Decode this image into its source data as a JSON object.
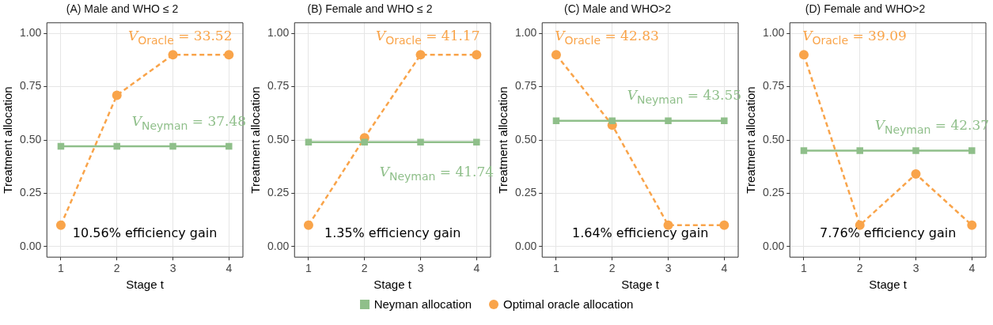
{
  "chart_data": [
    {
      "type": "line",
      "title": "(A) Male and WHO ≤ 2",
      "xlabel": "Stage t",
      "ylabel": "Treatment allocation",
      "x": [
        1,
        2,
        3,
        4
      ],
      "xlim": [
        0.75,
        4.25
      ],
      "xticks": [
        1,
        2,
        3,
        4
      ],
      "ylim": [
        -0.05,
        1.05
      ],
      "yticks": [
        {
          "value": 0,
          "label": "0.00"
        },
        {
          "value": 0.25,
          "label": "0.25"
        },
        {
          "value": 0.5,
          "label": "0.50"
        },
        {
          "value": 0.75,
          "label": "0.75"
        },
        {
          "value": 1,
          "label": "1.00"
        }
      ],
      "grid": true,
      "legend": "bottom",
      "series": [
        {
          "name": "Neyman allocation",
          "color": "#8fbf8a",
          "marker": "square",
          "line_style": "solid",
          "values": [
            0.47,
            0.47,
            0.47,
            0.47
          ]
        },
        {
          "name": "Optimal oracle allocation",
          "color": "#f9a44a",
          "marker": "circle",
          "line_style": "dashed",
          "values": [
            0.1,
            0.71,
            0.9,
            0.9
          ]
        }
      ],
      "annotations": [
        "V$_{Neyman}$ = 37.48",
        "V$_{Oracle}$ = 33.52",
        "10.56% efficiency gain"
      ]
    },
    {
      "type": "line",
      "title": "(B) Female and WHO ≤ 2",
      "xlabel": "Stage t",
      "ylabel": "Treatment allocation",
      "x": [
        1,
        2,
        3,
        4
      ],
      "xlim": [
        0.75,
        4.25
      ],
      "xticks": [
        1,
        2,
        3,
        4
      ],
      "ylim": [
        -0.05,
        1.05
      ],
      "yticks": [
        {
          "value": 0,
          "label": "0.00"
        },
        {
          "value": 0.25,
          "label": "0.25"
        },
        {
          "value": 0.5,
          "label": "0.50"
        },
        {
          "value": 0.75,
          "label": "0.75"
        },
        {
          "value": 1,
          "label": "1.00"
        }
      ],
      "grid": true,
      "legend": "bottom",
      "series": [
        {
          "name": "Neyman allocation",
          "color": "#8fbf8a",
          "marker": "square",
          "line_style": "solid",
          "values": [
            0.49,
            0.49,
            0.49,
            0.49
          ]
        },
        {
          "name": "Optimal oracle allocation",
          "color": "#f9a44a",
          "marker": "circle",
          "line_style": "dashed",
          "values": [
            0.1,
            0.51,
            0.9,
            0.9
          ]
        }
      ],
      "annotations": [
        "V$_{Neyman}$ = 41.74",
        "V$_{Oracle}$ = 41.17",
        "1.35% efficiency gain"
      ]
    },
    {
      "type": "line",
      "title": "(C) Male and WHO>2",
      "xlabel": "Stage t",
      "ylabel": "Treatment allocation",
      "x": [
        1,
        2,
        3,
        4
      ],
      "xlim": [
        0.75,
        4.25
      ],
      "xticks": [
        1,
        2,
        3,
        4
      ],
      "ylim": [
        -0.05,
        1.05
      ],
      "yticks": [
        {
          "value": 0,
          "label": "0.00"
        },
        {
          "value": 0.25,
          "label": "0.25"
        },
        {
          "value": 0.5,
          "label": "0.50"
        },
        {
          "value": 0.75,
          "label": "0.75"
        },
        {
          "value": 1,
          "label": "1.00"
        }
      ],
      "grid": true,
      "legend": "bottom",
      "series": [
        {
          "name": "Neyman allocation",
          "color": "#8fbf8a",
          "marker": "square",
          "line_style": "solid",
          "values": [
            0.59,
            0.59,
            0.59,
            0.59
          ]
        },
        {
          "name": "Optimal oracle allocation",
          "color": "#f9a44a",
          "marker": "circle",
          "line_style": "dashed",
          "values": [
            0.9,
            0.57,
            0.1,
            0.1
          ]
        }
      ],
      "annotations": [
        "V$_{Neyman}$ = 43.55",
        "V$_{Oracle}$ = 42.83",
        "1.64% efficiency gain"
      ]
    },
    {
      "type": "line",
      "title": "(D) Female and WHO>2",
      "xlabel": "Stage t",
      "ylabel": "Treatment allocation",
      "x": [
        1,
        2,
        3,
        4
      ],
      "xlim": [
        0.75,
        4.25
      ],
      "xticks": [
        1,
        2,
        3,
        4
      ],
      "ylim": [
        -0.05,
        1.05
      ],
      "yticks": [
        {
          "value": 0,
          "label": "0.00"
        },
        {
          "value": 0.25,
          "label": "0.25"
        },
        {
          "value": 0.5,
          "label": "0.50"
        },
        {
          "value": 0.75,
          "label": "0.75"
        },
        {
          "value": 1,
          "label": "1.00"
        }
      ],
      "grid": true,
      "legend": "bottom",
      "series": [
        {
          "name": "Neyman allocation",
          "color": "#8fbf8a",
          "marker": "square",
          "line_style": "solid",
          "values": [
            0.45,
            0.45,
            0.45,
            0.45
          ]
        },
        {
          "name": "Optimal oracle allocation",
          "color": "#f9a44a",
          "marker": "circle",
          "line_style": "dashed",
          "values": [
            0.9,
            0.1,
            0.34,
            0.1
          ]
        }
      ],
      "annotations": [
        "V$_{Neyman}$ = 42.37",
        "V$_{Oracle}$ = 39.09",
        "7.76% efficiency gain"
      ]
    }
  ]
}
